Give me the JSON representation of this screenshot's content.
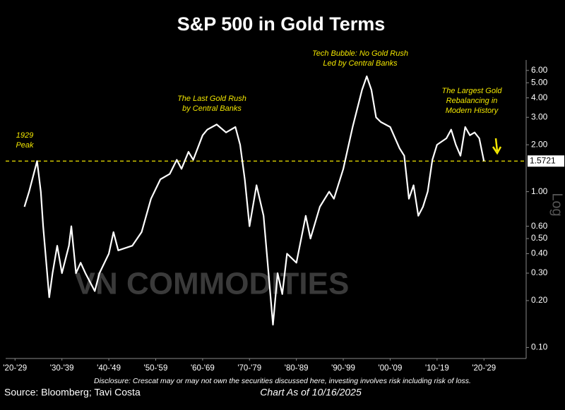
{
  "chart_data": {
    "type": "line",
    "title": "S&P 500 in Gold Terms",
    "color": "#ffffff",
    "log_scale": true,
    "y_axis_label": "Log",
    "x": [
      1927,
      1928,
      1929.7,
      1930.5,
      1931,
      1932.3,
      1933,
      1934,
      1935,
      1936.5,
      1937,
      1938,
      1939,
      1940,
      1942,
      1943,
      1945,
      1946,
      1947,
      1950,
      1952,
      1954,
      1956,
      1958,
      1959.5,
      1960.5,
      1962,
      1963,
      1965,
      1966,
      1968,
      1970,
      1972,
      1973,
      1974,
      1975,
      1976.5,
      1978,
      1980,
      1981,
      1982,
      1983,
      1985,
      1987,
      1988,
      1990,
      1992,
      1993,
      1995,
      1997,
      1999,
      2000,
      2001,
      2002,
      2003,
      2005,
      2007,
      2008,
      2009,
      2010,
      2011,
      2012,
      2013,
      2014,
      2015,
      2017,
      2018,
      2019,
      2020,
      2021,
      2022,
      2023,
      2024,
      2025
    ],
    "values": [
      0.8,
      1.0,
      1.57,
      1.0,
      0.6,
      0.21,
      0.3,
      0.45,
      0.3,
      0.45,
      0.6,
      0.3,
      0.35,
      0.3,
      0.23,
      0.3,
      0.4,
      0.55,
      0.42,
      0.45,
      0.55,
      0.9,
      1.2,
      1.3,
      1.6,
      1.4,
      1.8,
      1.6,
      2.3,
      2.5,
      2.7,
      2.4,
      2.6,
      2.0,
      1.2,
      0.6,
      1.1,
      0.7,
      0.14,
      0.3,
      0.22,
      0.4,
      0.35,
      0.7,
      0.5,
      0.8,
      1.0,
      0.9,
      1.4,
      2.6,
      4.5,
      5.5,
      4.5,
      3.0,
      2.8,
      2.6,
      1.9,
      1.7,
      0.9,
      1.1,
      0.7,
      0.8,
      1.0,
      1.6,
      2.0,
      2.2,
      2.5,
      2.0,
      1.7,
      2.6,
      2.3,
      2.4,
      2.2,
      1.57
    ],
    "xlim": [
      1923,
      2034
    ],
    "xticks": [
      {
        "value": 1925,
        "label": "'20-'29"
      },
      {
        "value": 1935,
        "label": "'30-'39"
      },
      {
        "value": 1945,
        "label": "'40-'49"
      },
      {
        "value": 1955,
        "label": "'50-'59"
      },
      {
        "value": 1965,
        "label": "'60-'69"
      },
      {
        "value": 1975,
        "label": "'70-'79"
      },
      {
        "value": 1985,
        "label": "'80-'89"
      },
      {
        "value": 1995,
        "label": "'90-'99"
      },
      {
        "value": 2005,
        "label": "'00-'09"
      },
      {
        "value": 2015,
        "label": "'10-'19"
      },
      {
        "value": 2025,
        "label": "'20-'29"
      }
    ],
    "ylim": [
      0.085,
      7
    ],
    "yticks": [
      {
        "value": 0.1,
        "label": "0.10"
      },
      {
        "value": 0.2,
        "label": "0.20"
      },
      {
        "value": 0.3,
        "label": "0.30"
      },
      {
        "value": 0.4,
        "label": "0.40"
      },
      {
        "value": 0.5,
        "label": "0.50"
      },
      {
        "value": 0.6,
        "label": "0.60"
      },
      {
        "value": 1,
        "label": "1.00"
      },
      {
        "value": 2,
        "label": "2.00"
      },
      {
        "value": 3,
        "label": "3.00"
      },
      {
        "value": 4,
        "label": "4.00"
      },
      {
        "value": 5,
        "label": "5.00"
      },
      {
        "value": 6,
        "label": "6.00"
      }
    ],
    "reference_line": 1.5721,
    "annotations": [
      [
        "1929",
        "Peak"
      ],
      [
        "The Last Gold Rush",
        "by Central Banks"
      ],
      [
        "Tech Bubble: No Gold Rush",
        "Led by Central Banks"
      ],
      [
        "The Largest Gold",
        "Rebalancing in",
        "Modern History"
      ]
    ],
    "watermark": "VN COMMODITIES",
    "disclosure": "Disclosure: Crescat may or may not own the securities discussed here, investing involves risk including risk of loss.",
    "source": "Source: Bloomberg; Tavi Costa",
    "as_of": "Chart As of 10/16/2025"
  }
}
